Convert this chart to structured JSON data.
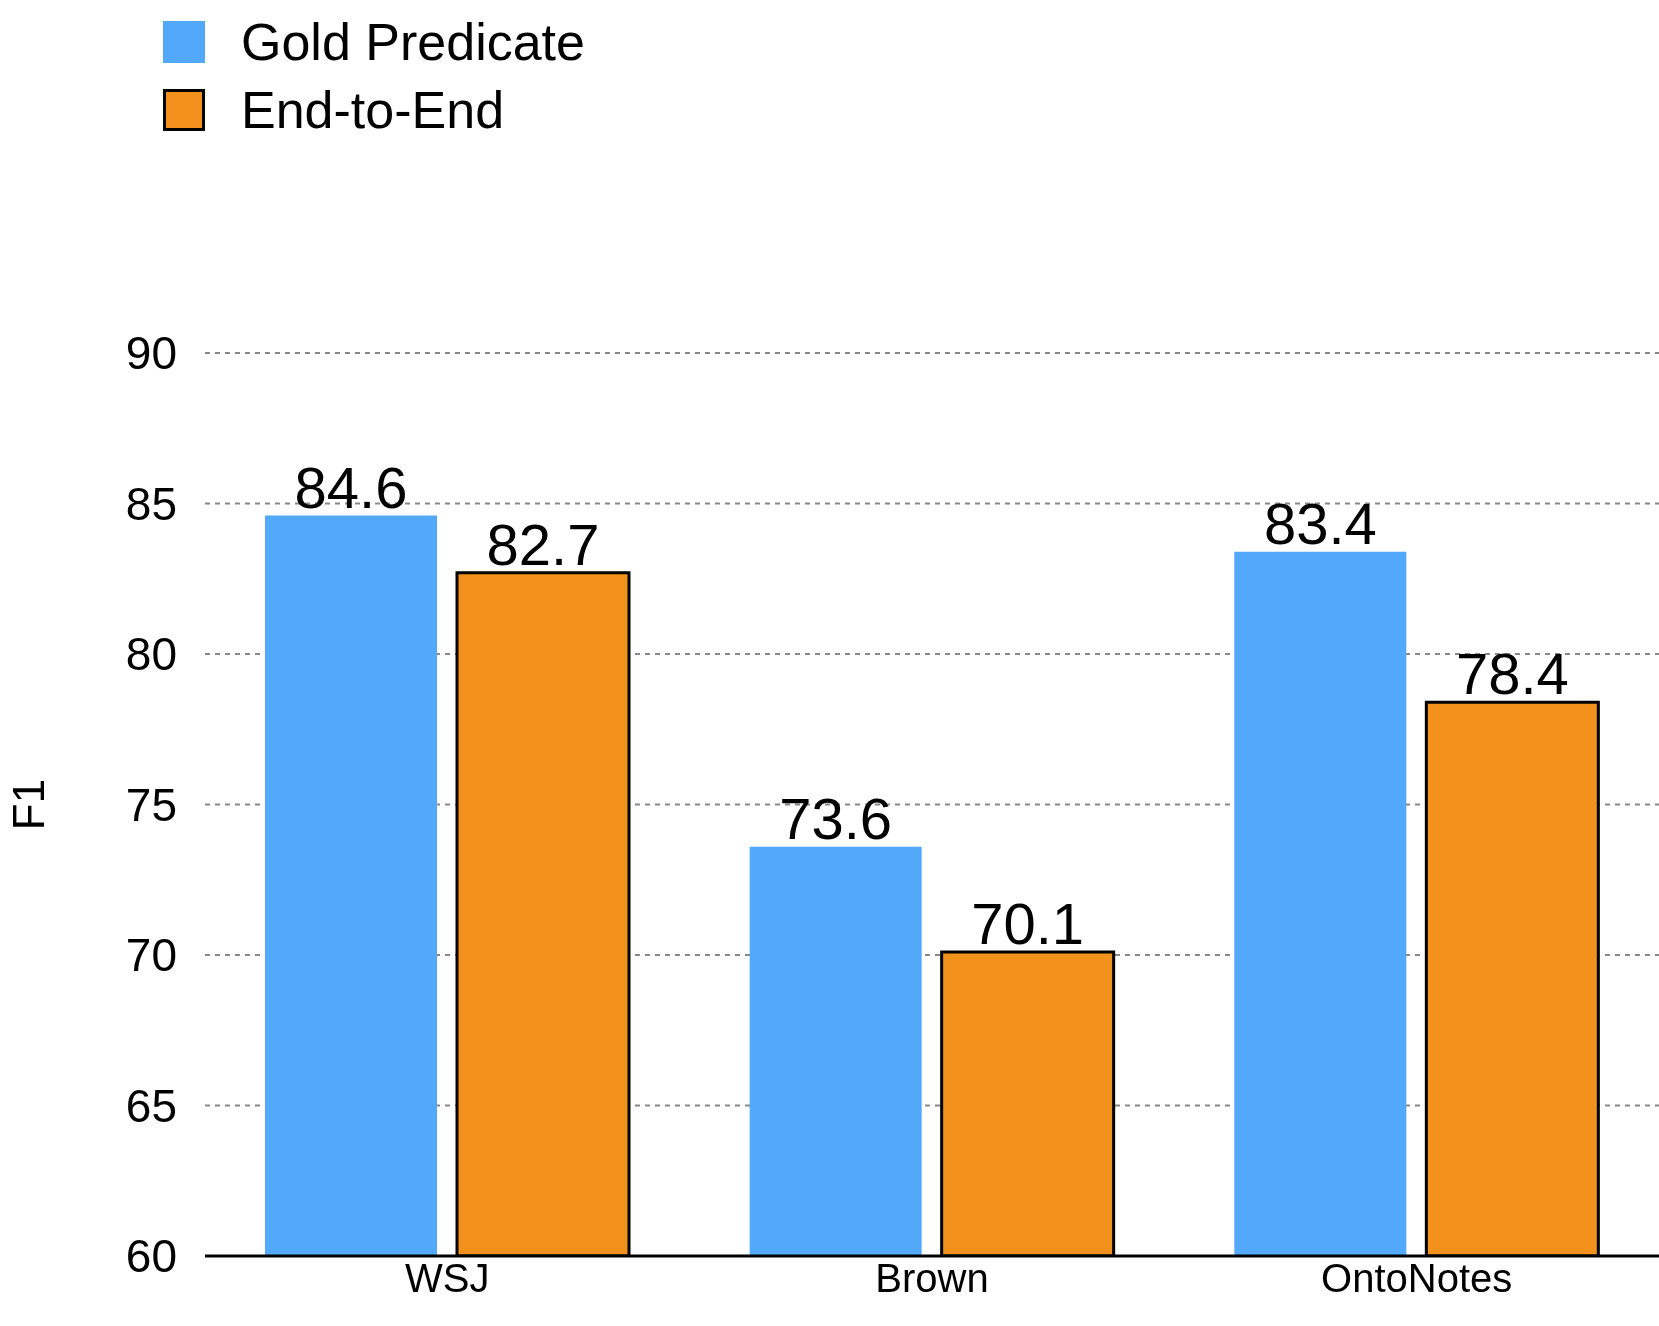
{
  "chart_data": {
    "type": "bar",
    "ylabel": "F1",
    "categories": [
      "WSJ",
      "Brown",
      "OntoNotes"
    ],
    "series": [
      {
        "name": "Gold Predicate",
        "color": "#52a8f9",
        "values": [
          84.6,
          73.6,
          83.4
        ]
      },
      {
        "name": "End-to-End",
        "color": "#f2921d",
        "values": [
          82.7,
          70.1,
          78.4
        ]
      }
    ],
    "ylim": [
      60,
      90
    ],
    "yticks": [
      60,
      65,
      70,
      75,
      80,
      85,
      90
    ],
    "grid": "y",
    "legend": "top left",
    "data_labels": true
  }
}
